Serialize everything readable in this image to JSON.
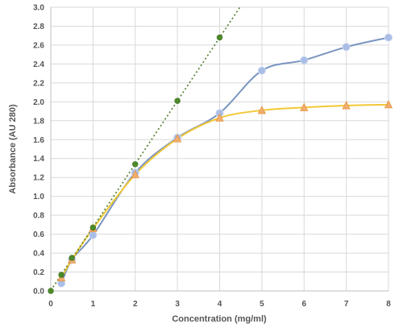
{
  "chart_data": {
    "type": "scatter",
    "xlabel": "Concentration  (mg/ml)",
    "ylabel": "Absorbance (AU 280)",
    "xlim": [
      0,
      8
    ],
    "ylim": [
      0,
      3.0
    ],
    "x_ticks": [
      "0",
      "1",
      "2",
      "3",
      "4",
      "5",
      "6",
      "7",
      "8"
    ],
    "y_ticks": [
      "0.0",
      "0.2",
      "0.4",
      "0.6",
      "0.8",
      "1.0",
      "1.2",
      "1.4",
      "1.6",
      "1.8",
      "2.0",
      "2.2",
      "2.4",
      "2.6",
      "2.8",
      "3.0"
    ],
    "grid": true,
    "legend": "none",
    "series": [
      {
        "marker": "circle",
        "color": "#a9bde6",
        "line_color": "#7a95c0",
        "points": [
          [
            0.25,
            0.08
          ],
          [
            0.5,
            0.33
          ],
          [
            1,
            0.59
          ],
          [
            2,
            1.25
          ],
          [
            3,
            1.62
          ],
          [
            4,
            1.88
          ],
          [
            5,
            2.33
          ],
          [
            6,
            2.44
          ],
          [
            7,
            2.58
          ],
          [
            8,
            2.68
          ]
        ]
      },
      {
        "marker": "triangle",
        "color": "#f0ad6e",
        "line_color": "#f2c836",
        "points": [
          [
            0.25,
            0.14
          ],
          [
            0.5,
            0.33
          ],
          [
            1,
            0.66
          ],
          [
            2,
            1.23
          ],
          [
            3,
            1.61
          ],
          [
            4,
            1.83
          ],
          [
            5,
            1.91
          ],
          [
            6,
            1.94
          ],
          [
            7,
            1.96
          ],
          [
            8,
            1.97
          ]
        ]
      },
      {
        "marker": "dot",
        "color": "#4e8a2a",
        "line_color": "#4e7a2a",
        "line_style": "dotted",
        "points": [
          [
            0,
            0.0
          ],
          [
            0.25,
            0.17
          ],
          [
            0.5,
            0.35
          ],
          [
            1,
            0.67
          ],
          [
            2,
            1.34
          ],
          [
            3,
            2.01
          ],
          [
            4,
            2.68
          ]
        ]
      }
    ]
  }
}
